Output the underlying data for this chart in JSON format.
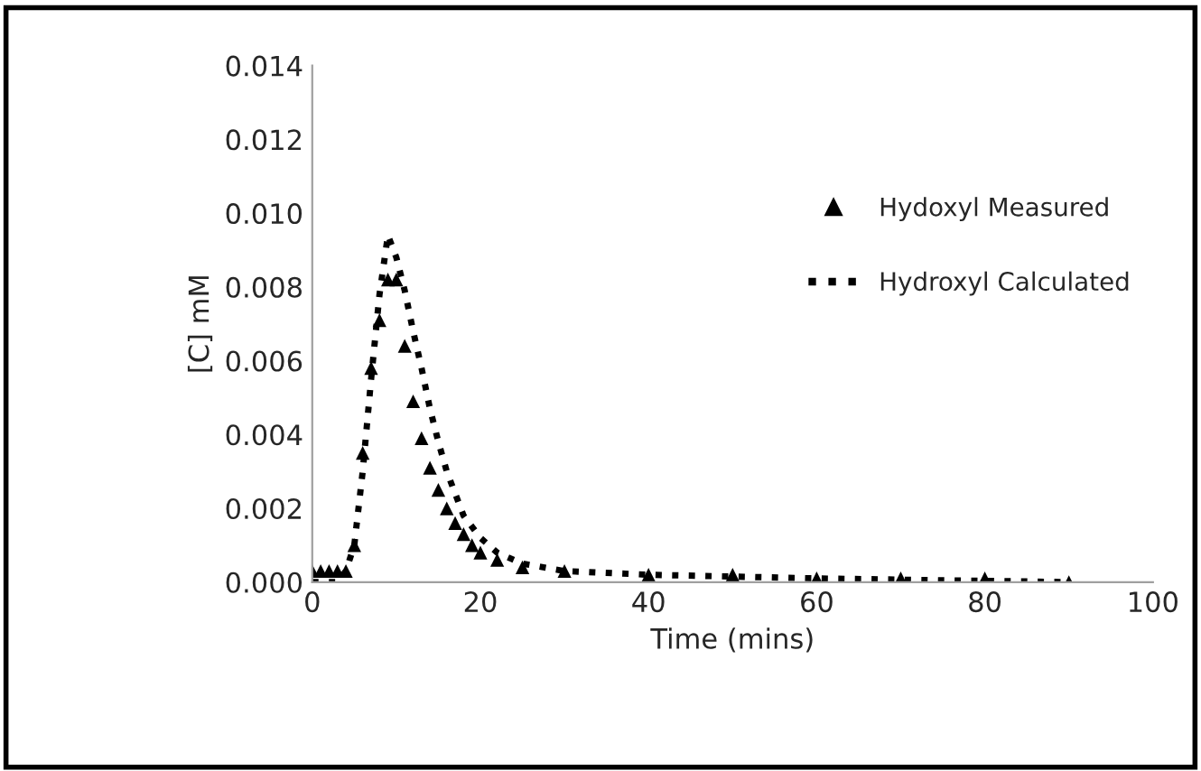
{
  "chart_data": {
    "type": "scatter",
    "xlabel": "Time (mins)",
    "ylabel": "[C] mM",
    "xlim": [
      0,
      100
    ],
    "xticks": [
      0,
      20,
      40,
      60,
      80,
      100
    ],
    "ylim": [
      0,
      0.014
    ],
    "yticks": [
      {
        "value": 0,
        "label": "0.000"
      },
      {
        "value": 0.002,
        "label": "0.002"
      },
      {
        "value": 0.004,
        "label": "0.004"
      },
      {
        "value": 0.006,
        "label": "0.006"
      },
      {
        "value": 0.008,
        "label": "0.008"
      },
      {
        "value": 0.01,
        "label": "0.010"
      },
      {
        "value": 0.012,
        "label": "0.012"
      },
      {
        "value": 0.014,
        "label": "0.014"
      }
    ],
    "grid": false,
    "legend": "right",
    "series": [
      {
        "name": "Hydoxyl Measured",
        "marker": "triangle",
        "color": "#000000",
        "x": [
          0,
          1,
          2,
          3,
          4,
          5,
          6,
          7,
          8,
          9,
          10,
          11,
          12,
          13,
          14,
          15,
          16,
          17,
          18,
          19,
          20,
          22,
          25,
          30,
          40,
          50,
          60,
          70,
          80,
          90
        ],
        "values": [
          0.0003,
          0.0003,
          0.0003,
          0.0003,
          0.0003,
          0.001,
          0.0035,
          0.0058,
          0.0071,
          0.0082,
          0.0082,
          0.0064,
          0.0049,
          0.0039,
          0.0031,
          0.0025,
          0.002,
          0.0016,
          0.0013,
          0.001,
          0.0008,
          0.0006,
          0.0004,
          0.0003,
          0.0002,
          0.0002,
          0.0001,
          0.0001,
          0.0001,
          0.0
        ]
      },
      {
        "name": "Hydroxyl Calculated",
        "type": "line",
        "marker": "none",
        "line_style": "dotted",
        "color": "#000000",
        "x": [
          0,
          3,
          4,
          5,
          6,
          7,
          8,
          9,
          10,
          11,
          12,
          13,
          14,
          15,
          16,
          17,
          18,
          20,
          22,
          25,
          30,
          40,
          60,
          90
        ],
        "values": [
          0.0,
          0.0,
          0.0003,
          0.001,
          0.003,
          0.0055,
          0.0078,
          0.0094,
          0.0088,
          0.0079,
          0.0068,
          0.0058,
          0.0047,
          0.0038,
          0.003,
          0.0024,
          0.0018,
          0.0012,
          0.0008,
          0.0005,
          0.0003,
          0.0002,
          0.0001,
          0.0
        ]
      }
    ]
  }
}
